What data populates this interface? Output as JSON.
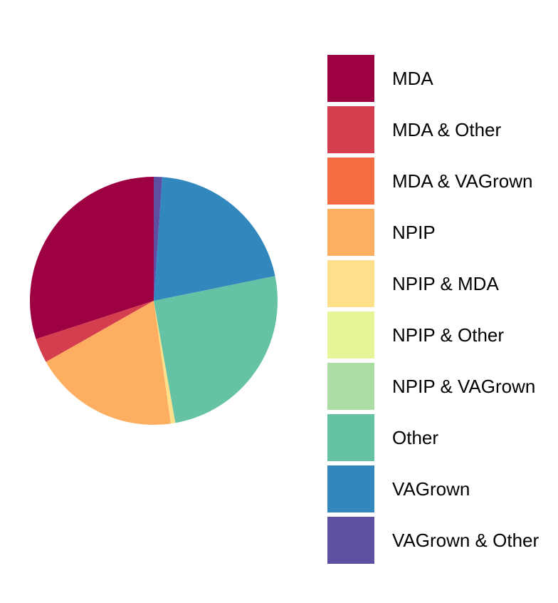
{
  "chart_data": {
    "type": "pie",
    "title": "",
    "legend_position": "right",
    "slices": [
      {
        "label": "MDA",
        "value": 30.0,
        "color": "#9E0142"
      },
      {
        "label": "MDA & Other",
        "value": 3.2,
        "color": "#D53E4F"
      },
      {
        "label": "MDA & VAGrown",
        "value": 0.0,
        "color": "#F46D43"
      },
      {
        "label": "NPIP",
        "value": 19.0,
        "color": "#FDAE61"
      },
      {
        "label": "NPIP & MDA",
        "value": 0.6,
        "color": "#FEE08B"
      },
      {
        "label": "NPIP & Other",
        "value": 0.0,
        "color": "#E6F598"
      },
      {
        "label": "NPIP & VAGrown",
        "value": 0.0,
        "color": "#ABDDA4"
      },
      {
        "label": "Other",
        "value": 25.4,
        "color": "#66C2A5"
      },
      {
        "label": "VAGrown",
        "value": 20.7,
        "color": "#3288BD"
      },
      {
        "label": "VAGrown & Other",
        "value": 1.1,
        "color": "#5E4FA2"
      }
    ]
  }
}
